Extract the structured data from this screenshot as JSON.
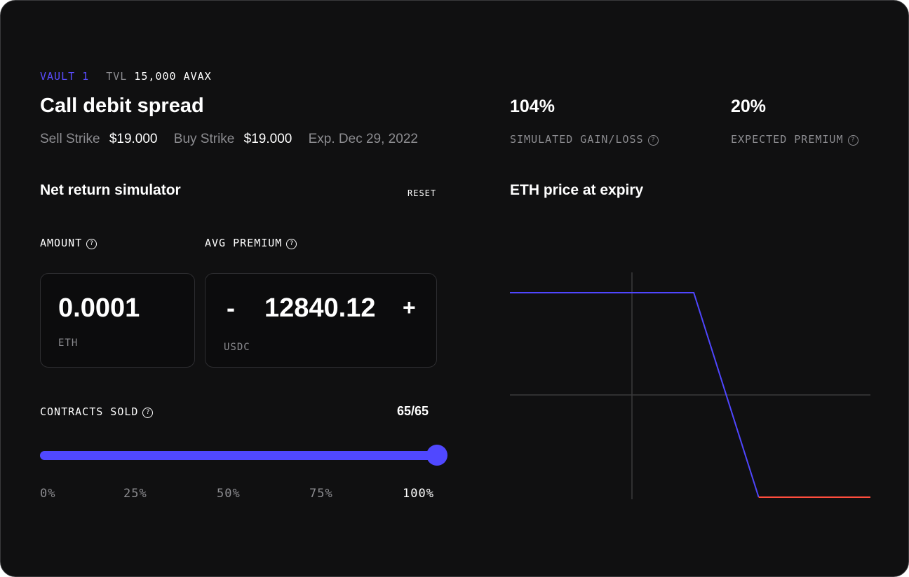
{
  "header": {
    "vault_label": "VAULT 1",
    "tvl_label": "TVL",
    "tvl_value": "15,000 AVAX",
    "title": "Call debit spread",
    "sell_strike_label": "Sell Strike",
    "sell_strike_value": "$19.000",
    "buy_strike_label": "Buy Strike",
    "buy_strike_value": "$19.000",
    "expiry": "Exp. Dec 29, 2022"
  },
  "stats": [
    {
      "value": "104%",
      "label": "SIMULATED GAIN/LOSS"
    },
    {
      "value": "20%",
      "label": "EXPECTED PREMIUM"
    }
  ],
  "simulator": {
    "title": "Net return simulator",
    "reset_label": "RESET",
    "amount_label": "AMOUNT",
    "amount_value": "0.0001",
    "amount_unit": "ETH",
    "premium_label": "AVG PREMIUM",
    "premium_value": "12840.12",
    "premium_unit": "USDC",
    "decrement_label": "-",
    "increment_label": "+",
    "contracts_label": "CONTRACTS SOLD",
    "contracts_value": "65/65",
    "slider_fraction": 1.0,
    "slider_ticks": [
      "0%",
      "25%",
      "50%",
      "75%",
      "100%"
    ]
  },
  "chart": {
    "title": "ETH price at expiry",
    "colors": {
      "gain": "#4f46ff",
      "loss": "#ff4d3d",
      "axis": "#3a3a3c"
    }
  },
  "chart_data": {
    "type": "line",
    "title": "ETH price at expiry",
    "series": [
      {
        "segment": "gain",
        "x": [
          0,
          0.51,
          0.69
        ],
        "y": [
          1,
          1,
          -1
        ]
      },
      {
        "segment": "loss",
        "x": [
          0.69,
          1
        ],
        "y": [
          -1,
          -1
        ]
      }
    ],
    "xlim": [
      0,
      1
    ],
    "ylim": [
      -1,
      1
    ],
    "grid": false
  },
  "icons": {
    "help": "question-circle-icon"
  }
}
